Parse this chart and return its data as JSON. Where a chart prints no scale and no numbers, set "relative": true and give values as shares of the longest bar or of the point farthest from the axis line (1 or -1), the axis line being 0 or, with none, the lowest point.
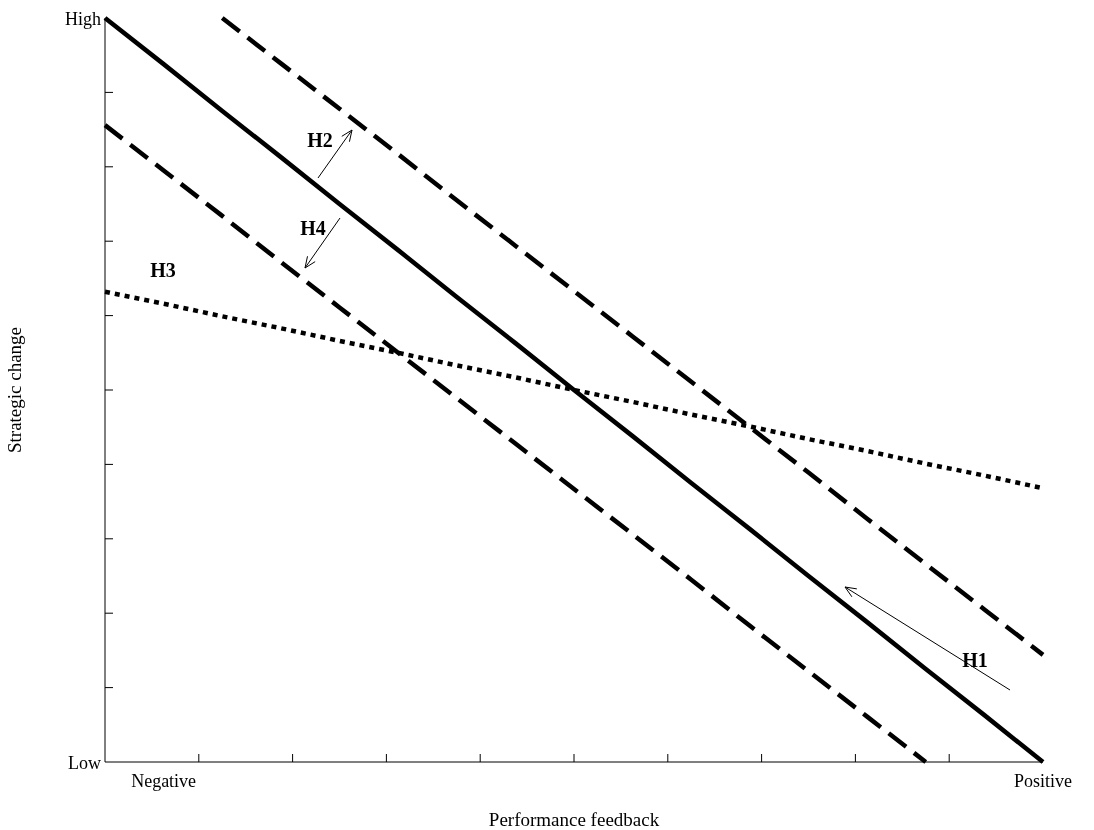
{
  "chart_data": {
    "type": "line",
    "relative": true,
    "xlabel": "Performance feedback",
    "ylabel": "Strategic change",
    "categories": [
      null,
      "Negative",
      null,
      null,
      null,
      null,
      null,
      null,
      null,
      null,
      null,
      null,
      null,
      null,
      null,
      null,
      "Positive"
    ],
    "grid": false,
    "legend": false,
    "marker": "none",
    "series": [
      {
        "color": "#000000",
        "line_style": "solid",
        "values": [
          1,
          0.938,
          0.875,
          0.813,
          0.75,
          0.688,
          0.625,
          0.563,
          0.5,
          0.438,
          0.375,
          0.313,
          0.25,
          0.188,
          0.125,
          0.063,
          0
        ]
      },
      {
        "color": "#000000",
        "line_style": "dashed",
        "values": [
          null,
          null,
          1,
          0.939,
          0.878,
          0.817,
          0.755,
          0.694,
          0.633,
          0.572,
          0.511,
          0.45,
          0.389,
          0.327,
          0.266,
          0.205,
          0.144
        ]
      },
      {
        "color": "#000000",
        "line_style": "dashed",
        "values": [
          0.856,
          0.795,
          0.734,
          0.672,
          0.611,
          0.55,
          0.489,
          0.428,
          0.367,
          0.306,
          0.245,
          0.183,
          0.122,
          0.061,
          0,
          null,
          null
        ]
      },
      {
        "color": "#000000",
        "line_style": "dotted",
        "values": [
          0.632,
          0.616,
          0.599,
          0.583,
          0.566,
          0.55,
          0.533,
          0.517,
          0.5,
          0.484,
          0.467,
          0.451,
          0.434,
          0.418,
          0.401,
          0.385,
          0.368
        ]
      }
    ],
    "annotations": [
      "H2",
      "H4",
      "H3",
      "H1",
      "High",
      "Low"
    ]
  }
}
